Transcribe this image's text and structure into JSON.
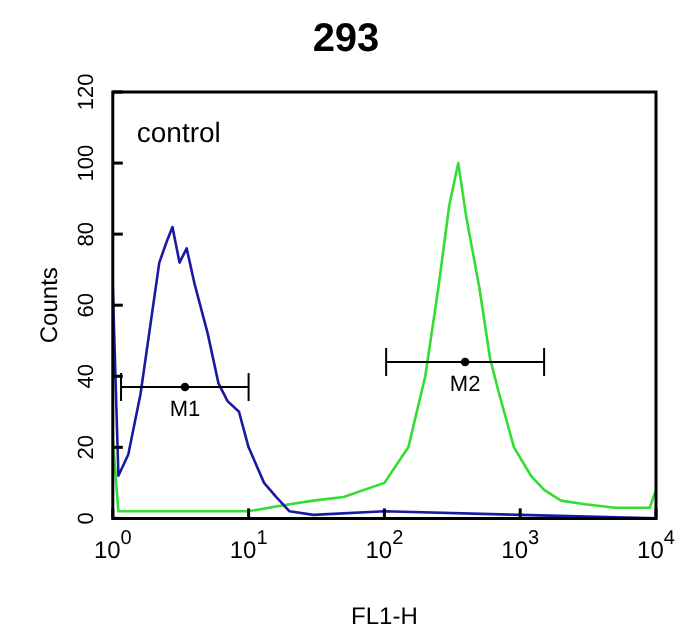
{
  "chart_data": {
    "type": "line",
    "title": "293",
    "xlabel": "FL1-H",
    "ylabel": "Counts",
    "log": "x",
    "grid": false,
    "legend": false,
    "xlim": [
      1,
      10000
    ],
    "xticks": [
      {
        "value": 1,
        "label": "10$^{0}$"
      },
      {
        "value": 10,
        "label": "10$^{1}$"
      },
      {
        "value": 100,
        "label": "10$^{2}$"
      },
      {
        "value": 1000,
        "label": "10$^{3}$"
      },
      {
        "value": 10000,
        "label": "10$^{4}$"
      }
    ],
    "ylim": [
      0,
      120
    ],
    "yticks": [
      0,
      20,
      40,
      60,
      80,
      100,
      120
    ],
    "annotations": [
      "control"
    ],
    "series": [
      {
        "color": "#1a1aa0",
        "x": [
          1,
          1.1,
          1.3,
          1.6,
          1.9,
          2.2,
          2.5,
          2.75,
          3.1,
          3.5,
          4,
          5,
          6,
          7,
          8.5,
          10,
          13,
          16,
          20,
          30,
          100,
          1000,
          10000
        ],
        "values": [
          65,
          12,
          18,
          35,
          55,
          72,
          78,
          82,
          72,
          76,
          66,
          52,
          38,
          33,
          30,
          20,
          10,
          6,
          2,
          1,
          2,
          1,
          0
        ]
      },
      {
        "color": "#33dd33",
        "x": [
          1,
          1.1,
          10,
          20,
          30,
          50,
          100,
          150,
          200,
          250,
          300,
          350,
          400,
          500,
          600,
          700,
          900,
          1200,
          1500,
          2000,
          3000,
          5000,
          9000,
          10000
        ],
        "values": [
          22,
          2,
          2,
          4,
          5,
          6,
          10,
          20,
          40,
          65,
          88,
          100,
          85,
          65,
          45,
          35,
          20,
          12,
          8,
          5,
          4,
          3,
          3,
          8
        ]
      },
      {
        "type": "scatter",
        "color": "#000000",
        "x": [
          3.4
        ],
        "values": [
          37
        ],
        "xerrors": [
          [
            1.15,
            10
          ]
        ],
        "value_labels": [
          "M1"
        ]
      },
      {
        "type": "scatter",
        "color": "#000000",
        "x": [
          393
        ],
        "values": [
          44
        ],
        "xerrors": [
          [
            103,
            1500
          ]
        ],
        "value_labels": [
          "M2"
        ]
      }
    ]
  }
}
